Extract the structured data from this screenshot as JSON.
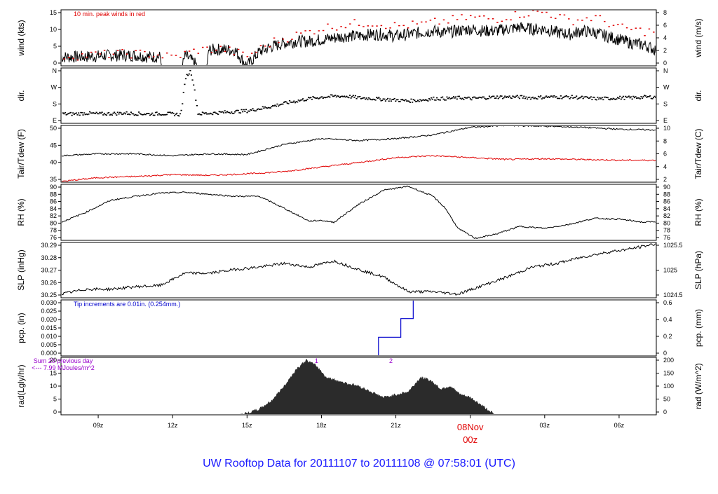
{
  "title": "UW Rooftop Data for 20111107  to  20111108 @ 07:58:01  (UTC)",
  "time_axis": {
    "hours_range": [
      7.5,
      31.5
    ],
    "ticks": [
      {
        "h": 9,
        "label": "09z"
      },
      {
        "h": 12,
        "label": "12z"
      },
      {
        "h": 15,
        "label": "15z"
      },
      {
        "h": 18,
        "label": "18z"
      },
      {
        "h": 21,
        "label": "21z"
      },
      {
        "h": 27,
        "label": "03z"
      },
      {
        "h": 30,
        "label": "06z"
      }
    ],
    "date_marker": {
      "h": 24,
      "date": "08Nov",
      "zulu": "00z"
    }
  },
  "colors": {
    "primary": "#000000",
    "red": "#e00000",
    "blue": "#0000cc",
    "purple": "#9900cc",
    "title_blue": "#1a1aff",
    "rad_fill": "#2b2b2b"
  },
  "chart_data": [
    {
      "id": "wind",
      "type": "line",
      "ylabel_left": "wind (kts)",
      "ylabel_right": "wind (m/s)",
      "ylim": [
        0,
        16
      ],
      "yticks_left": [
        "0",
        "5",
        "10",
        "15"
      ],
      "yticks_right": [
        "0",
        "2",
        "4",
        "6",
        "8"
      ],
      "annotation": "10 min. peak winds in red",
      "series": [
        {
          "color": "black",
          "x": [
            7.5,
            8.5,
            9.5,
            10.5,
            11,
            11.5,
            11.55,
            12,
            12.4,
            12.5,
            12.6,
            13,
            13.4,
            13.45,
            14,
            14.5,
            15,
            15.5,
            16,
            16.5,
            17,
            17.5,
            18,
            18.5,
            19,
            19.5,
            20,
            20.5,
            21,
            21.5,
            22,
            22.5,
            23,
            23.5,
            24,
            24.5,
            25,
            25.5,
            26,
            26.5,
            27,
            27.5,
            28,
            28.5,
            29,
            29.5,
            30,
            30.5,
            31,
            31.5
          ],
          "y": [
            2.5,
            2.6,
            3,
            3,
            2.6,
            2.6,
            0,
            0,
            0,
            2.8,
            2.5,
            0,
            0,
            4.5,
            4.7,
            4.5,
            0,
            4,
            5.5,
            6.5,
            7,
            7,
            7.5,
            8,
            8.5,
            8.5,
            9,
            9,
            8.5,
            9,
            9.5,
            10,
            9.5,
            10,
            10.5,
            10,
            10,
            10.5,
            11,
            10.5,
            10.5,
            9.5,
            9,
            10,
            9.5,
            8.5,
            7.5,
            6.5,
            6,
            4.5
          ]
        },
        {
          "color": "red",
          "x": [
            8,
            9,
            10,
            11,
            12,
            13,
            14,
            15,
            16,
            17,
            18,
            19,
            20,
            21,
            22,
            23,
            24,
            25,
            26,
            27,
            28,
            29,
            30,
            31
          ],
          "y": [
            3,
            3.4,
            3.6,
            3.6,
            2.6,
            4.7,
            5,
            3,
            7,
            9,
            11,
            12,
            12.5,
            11.5,
            12,
            13,
            14,
            13.5,
            15,
            15.5,
            13,
            14,
            11,
            10
          ]
        }
      ]
    },
    {
      "id": "dir",
      "type": "scatter",
      "ylabel_left": "dir.",
      "ylabel_right": "dir.",
      "ylim": [
        0,
        360
      ],
      "yticks_left": [
        "E",
        "S",
        "W",
        "N"
      ],
      "yticks_right": [
        "E",
        "S",
        "W",
        "N"
      ],
      "series": [
        {
          "x": [
            7.5,
            8,
            8.5,
            9,
            9.5,
            10,
            10.5,
            11,
            11.5,
            12,
            12.3,
            12.5,
            12.6,
            12.7,
            12.8,
            13,
            13.5,
            14,
            14.5,
            15,
            15.5,
            16,
            16.5,
            17,
            17.5,
            18,
            18.5,
            19,
            19.5,
            20,
            20.5,
            21,
            21.5,
            22,
            22.5,
            23,
            23.5,
            24,
            24.5,
            25,
            25.5,
            26,
            26.5,
            27,
            27.5,
            28,
            28.5,
            29,
            29.5,
            30,
            30.5,
            31,
            31.5
          ],
          "y": [
            60,
            60,
            65,
            60,
            62,
            65,
            62,
            60,
            62,
            60,
            55,
            300,
            320,
            340,
            270,
            60,
            65,
            70,
            75,
            80,
            95,
            110,
            130,
            145,
            160,
            170,
            175,
            175,
            165,
            160,
            155,
            150,
            145,
            150,
            160,
            160,
            165,
            160,
            165,
            170,
            170,
            170,
            165,
            170,
            170,
            170,
            165,
            160,
            160,
            165,
            165,
            170,
            170
          ]
        }
      ]
    },
    {
      "id": "temp",
      "type": "line",
      "ylabel_left": "Tair/Tdew (F)",
      "ylabel_right": "Tair/Tdew (C)",
      "ylim": [
        35,
        50
      ],
      "yticks_left": [
        "35",
        "40",
        "45",
        "50"
      ],
      "yticks_right": [
        "2",
        "4",
        "6",
        "8",
        "10"
      ],
      "series": [
        {
          "color": "black",
          "x": [
            7.5,
            9,
            10.5,
            12,
            13.5,
            15,
            16.5,
            18,
            19.5,
            21,
            22.5,
            24,
            25.5,
            27,
            28.5,
            30,
            31.5
          ],
          "y": [
            42,
            42.5,
            42.5,
            42,
            42.5,
            42.3,
            45,
            46.5,
            46,
            46.5,
            47.5,
            49.5,
            50,
            49.8,
            49.5,
            49,
            48.8
          ]
        },
        {
          "color": "red",
          "x": [
            7.5,
            9,
            10.5,
            12,
            13.5,
            15,
            16.5,
            18,
            19.5,
            21,
            22.5,
            24,
            25.5,
            27,
            28.5,
            30,
            31.5
          ],
          "y": [
            35.2,
            36.2,
            36.5,
            37,
            36.8,
            37.2,
            37.8,
            39,
            40.2,
            41.5,
            42,
            41.5,
            41,
            41.2,
            41,
            40.8,
            40.8
          ]
        }
      ]
    },
    {
      "id": "rh",
      "type": "line",
      "ylabel_left": "RH (%)",
      "ylabel_right": "RH (%)",
      "ylim": [
        76,
        90
      ],
      "yticks_left": [
        "76",
        "78",
        "80",
        "82",
        "84",
        "86",
        "88",
        "90"
      ],
      "yticks_right": [
        "76",
        "78",
        "80",
        "82",
        "84",
        "86",
        "88",
        "90"
      ],
      "series": [
        {
          "color": "black",
          "x": [
            7.5,
            8.5,
            9.5,
            10.5,
            11.5,
            12.5,
            13.5,
            14.5,
            15.5,
            16.5,
            17.5,
            18,
            18.5,
            19.5,
            20.5,
            21.5,
            22.5,
            23,
            23.5,
            24.2,
            25,
            26,
            27,
            28,
            29,
            30,
            31,
            31.5
          ],
          "y": [
            80.5,
            83,
            86,
            87,
            87.8,
            88,
            87.5,
            87,
            87,
            84,
            80.8,
            81,
            80.5,
            85,
            88.5,
            89.5,
            87,
            84,
            79,
            76.5,
            77.5,
            79.5,
            79,
            80,
            81.5,
            81.3,
            80.5,
            80.7
          ]
        }
      ]
    },
    {
      "id": "slp",
      "type": "line",
      "ylabel_left": "SLP (inHg)",
      "ylabel_right": "SLP (hPa)",
      "ylim": [
        30.245,
        30.29
      ],
      "yticks_left": [
        "30.25",
        "30.26",
        "30.27",
        "30.28",
        "30.29"
      ],
      "yticks_right": [
        "1024.5",
        "1025",
        "1025.5"
      ],
      "series": [
        {
          "color": "black",
          "x": [
            7.5,
            8.5,
            9.5,
            10.5,
            11.5,
            12.5,
            13.5,
            14.5,
            15.5,
            16.5,
            17.5,
            18.5,
            19.5,
            20.5,
            21.5,
            22.5,
            23.5,
            24.5,
            25.5,
            26.5,
            27.5,
            28.5,
            29.5,
            30.5,
            31.5
          ],
          "y": [
            30.248,
            30.252,
            30.252,
            30.254,
            30.255,
            30.265,
            30.265,
            30.268,
            30.27,
            30.273,
            30.27,
            30.275,
            30.268,
            30.262,
            30.25,
            30.25,
            30.248,
            30.255,
            30.262,
            30.27,
            30.273,
            30.278,
            30.282,
            30.285,
            30.289
          ]
        }
      ]
    },
    {
      "id": "pcp",
      "type": "line",
      "ylabel_left": "pcp. (in)",
      "ylabel_right": "pcp. (mm)",
      "ylim": [
        0,
        0.03
      ],
      "yticks_left": [
        "0.000",
        "0.005",
        "0.010",
        "0.015",
        "0.020",
        "0.025",
        "0.030"
      ],
      "yticks_right": [
        "0",
        "0.2",
        "0.4",
        "0.6"
      ],
      "annotation": "Tip increments are 0.01in. (0.254mm.)",
      "series": [
        {
          "color": "blue",
          "step": true,
          "x": [
            7.5,
            20.3,
            21.2,
            21.7,
            31.5
          ],
          "y": [
            0,
            0.01,
            0.02,
            0.03,
            0.03
          ]
        }
      ]
    },
    {
      "id": "rad",
      "type": "area",
      "ylabel_left": "rad(Lgly/hr)",
      "ylabel_right": "rad (W/m^2)",
      "ylim": [
        0,
        20
      ],
      "yticks_left": [
        "0",
        "5",
        "10",
        "15",
        "20"
      ],
      "yticks_right": [
        "0",
        "50",
        "100",
        "150",
        "200"
      ],
      "annotation": [
        "Sum 20 previous day",
        "<--- 7.99 MJoules/m^2"
      ],
      "hour_markers": [
        {
          "h": 17.8,
          "label": "1"
        },
        {
          "h": 20.8,
          "label": "2"
        }
      ],
      "series": [
        {
          "color": "#2b2b2b",
          "x": [
            7.5,
            14.5,
            15,
            15.5,
            16,
            16.5,
            17,
            17.4,
            17.8,
            18.2,
            18.6,
            19,
            19.5,
            20,
            20.5,
            21,
            21.5,
            22,
            22.4,
            22.8,
            23.2,
            23.6,
            24,
            24.5,
            25,
            31.5
          ],
          "y": [
            0,
            0,
            0.5,
            2,
            5,
            10,
            16,
            19,
            17,
            13,
            12,
            11,
            10,
            8,
            6,
            7,
            8,
            13,
            12,
            9,
            10,
            7,
            6,
            3,
            0,
            0
          ]
        }
      ]
    }
  ]
}
